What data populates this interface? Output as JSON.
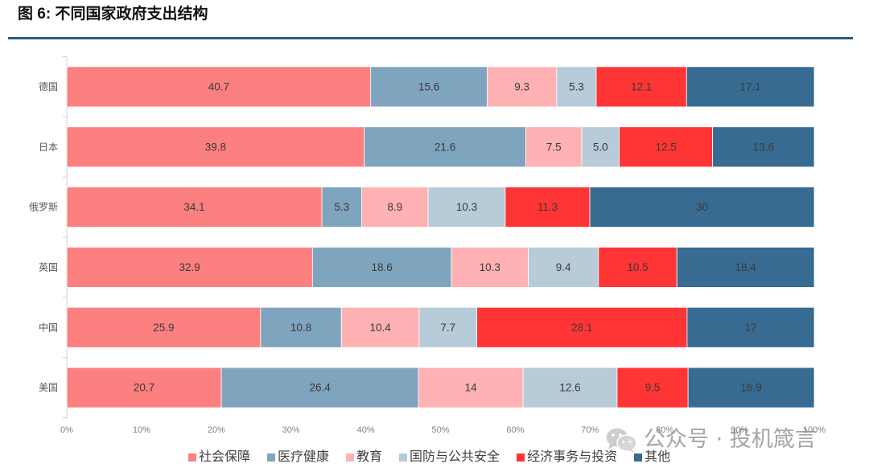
{
  "colors": {
    "rule": "#2d5a84"
  },
  "watermark": {
    "text": "公众号 · 投机箴言",
    "icon": "wechat-icon"
  },
  "chart_data": {
    "type": "bar",
    "horizontal": true,
    "stacked": true,
    "normalized": true,
    "title": "图 6: 不同国家政府支出结构",
    "categories": [
      "德国",
      "日本",
      "俄罗斯",
      "英国",
      "中国",
      "美国"
    ],
    "series": [
      {
        "name": "社会保障",
        "color": "#fd8080",
        "values": [
          40.7,
          39.8,
          34.1,
          32.9,
          25.9,
          20.7
        ],
        "labels": [
          "40.7",
          "39.8",
          "34.1",
          "32.9",
          "25.9",
          "20.7"
        ]
      },
      {
        "name": "医疗健康",
        "color": "#7fa5be",
        "values": [
          15.6,
          21.6,
          5.3,
          18.6,
          10.8,
          26.4
        ],
        "labels": [
          "15.6",
          "21.6",
          "5.3",
          "18.6",
          "10.8",
          "26.4"
        ]
      },
      {
        "name": "教育",
        "color": "#ffb2b3",
        "values": [
          9.3,
          7.5,
          8.9,
          10.3,
          10.4,
          14
        ],
        "labels": [
          "9.3",
          "7.5",
          "8.9",
          "10.3",
          "10.4",
          "14"
        ]
      },
      {
        "name": "国防与公共安全",
        "color": "#b7cbd9",
        "values": [
          5.3,
          5.0,
          10.3,
          9.4,
          7.7,
          12.6
        ],
        "labels": [
          "5.3",
          "5.0",
          "10.3",
          "9.4",
          "7.7",
          "12.6"
        ]
      },
      {
        "name": "经济事务与投资",
        "color": "#ff3535",
        "values": [
          12.1,
          12.5,
          11.3,
          10.5,
          28.1,
          9.5
        ],
        "labels": [
          "12.1",
          "12.5",
          "11.3",
          "10.5",
          "28.1",
          "9.5"
        ]
      },
      {
        "name": "其他",
        "color": "#386b91",
        "values": [
          17.1,
          13.6,
          30,
          18.4,
          17,
          16.9
        ],
        "labels": [
          "17.1",
          "13.6",
          "30",
          "18.4",
          "17",
          "16.9"
        ]
      }
    ],
    "xlim": [
      0,
      100
    ],
    "x_ticks": [
      "0%",
      "10%",
      "20%",
      "30%",
      "40%",
      "50%",
      "60%",
      "70%",
      "80%",
      "90%",
      "100%"
    ],
    "grid": false,
    "legend": "bottom"
  }
}
